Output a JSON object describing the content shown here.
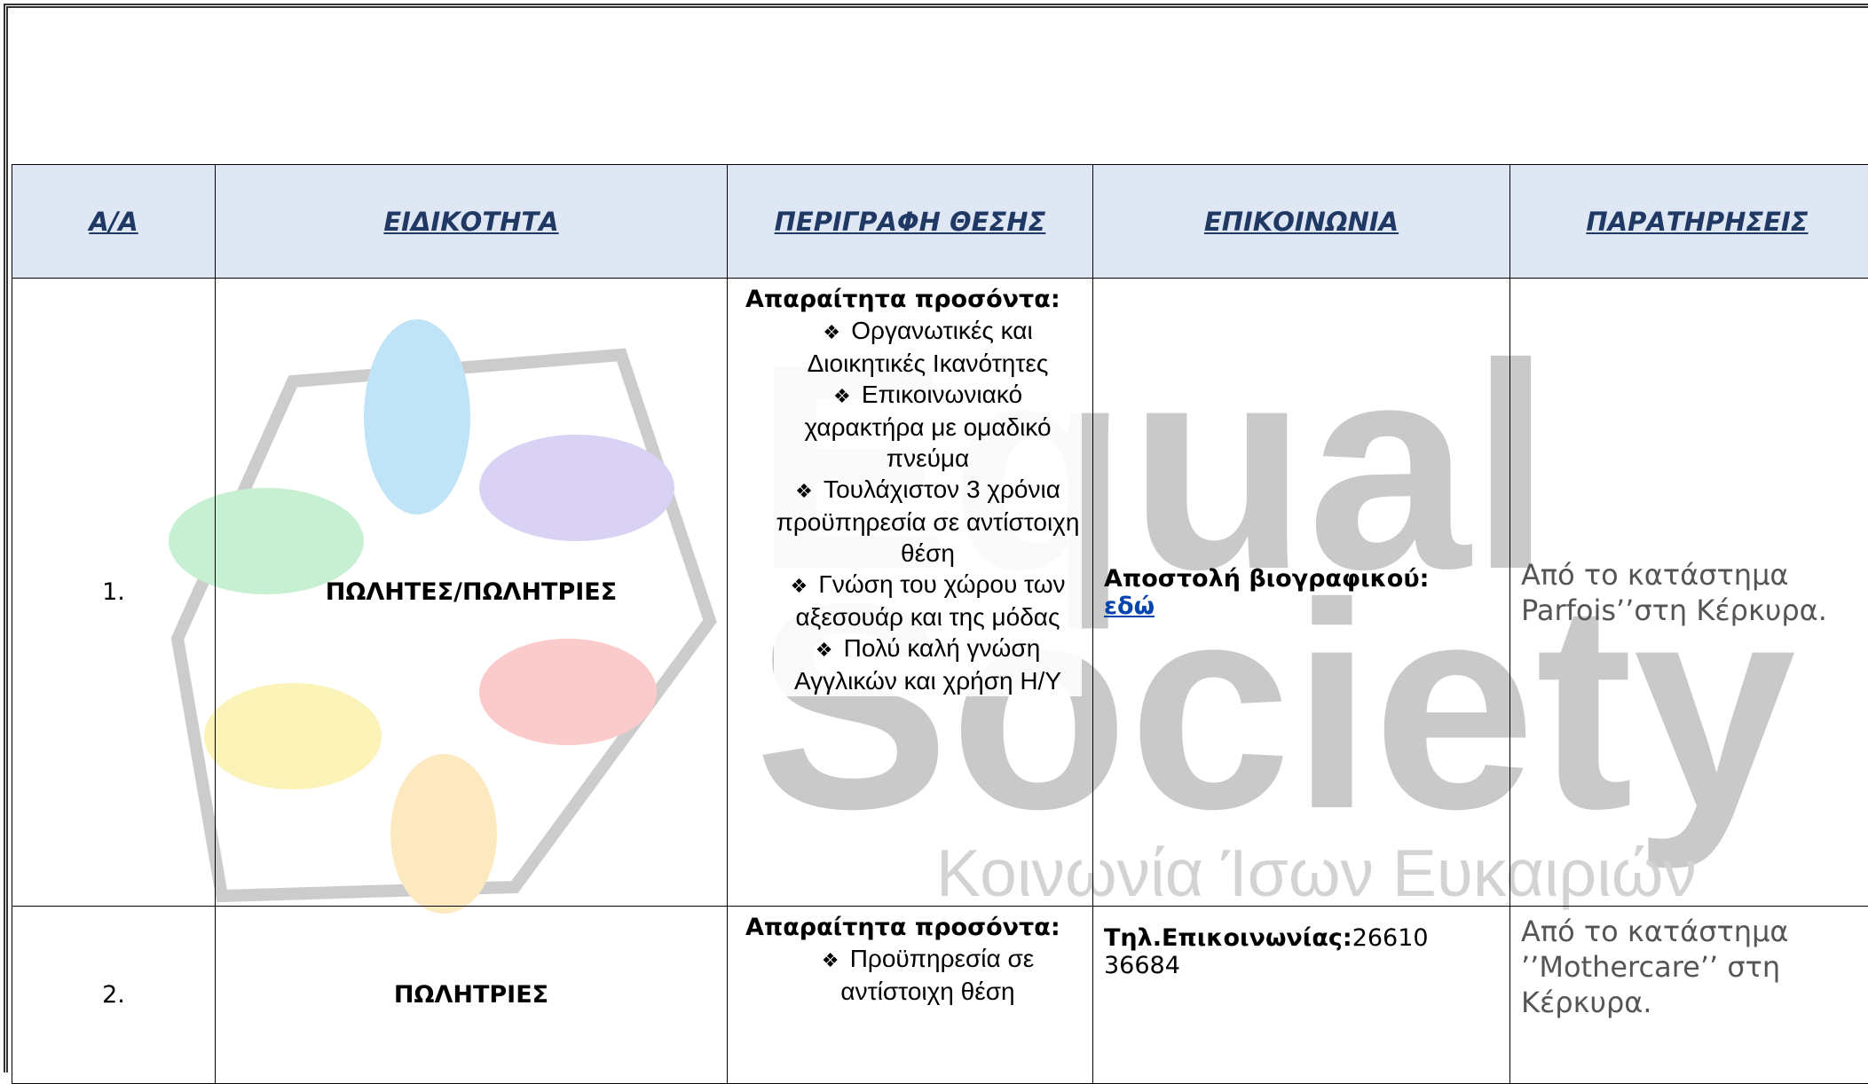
{
  "table": {
    "headers": [
      "Α/Α",
      "ΕΙΔΙΚΟΤΗΤΑ",
      "ΠΕΡΙΓΡΑΦΗ ΘΕΣΗΣ",
      "ΕΠΙΚΟΙΝΩΝΙΑ",
      "ΠΑΡΑΤΗΡΗΣΕΙΣ"
    ],
    "rows": [
      {
        "number": "1.",
        "specialty": "ΠΩΛΗΤΕΣ/ΠΩΛΗΤΡΙΕΣ",
        "requirements_heading": "Απαραίτητα προσόντα:",
        "requirements": [
          "Οργανωτικές και Διοικητικές Ικανότητες",
          "Επικοινωνιακό χαρακτήρα με ομαδικό πνεύμα",
          "Τουλάχιστον 3 χρόνια προϋπηρεσία σε αντίστοιχη θέση",
          "Γνώση του χώρου των αξεσουάρ και της μόδας",
          "Πολύ καλή γνώση Αγγλικών και χρήση Η/Υ"
        ],
        "contact_label": "Αποστολή βιογραφικού:",
        "contact_value": "εδώ",
        "notes": "Από το κατάστημα Parfois’’στη Κέρκυρα."
      },
      {
        "number": "2.",
        "specialty": "ΠΩΛΗΤΡΙΕΣ",
        "requirements_heading": "Απαραίτητα προσόντα:",
        "requirements": [
          "Προϋπηρεσία σε αντίστοιχη θέση"
        ],
        "contact_label": "Τηλ.Επικοινωνίας:",
        "contact_value": "26610 36684",
        "notes": "Από το κατάστημα ’’Mothercare’’ στη Κέρκυρα."
      }
    ]
  },
  "watermark": {
    "line1": "Equal",
    "line2": "Society",
    "tagline": "Κοινωνία Ίσων Ευκαιριών"
  }
}
